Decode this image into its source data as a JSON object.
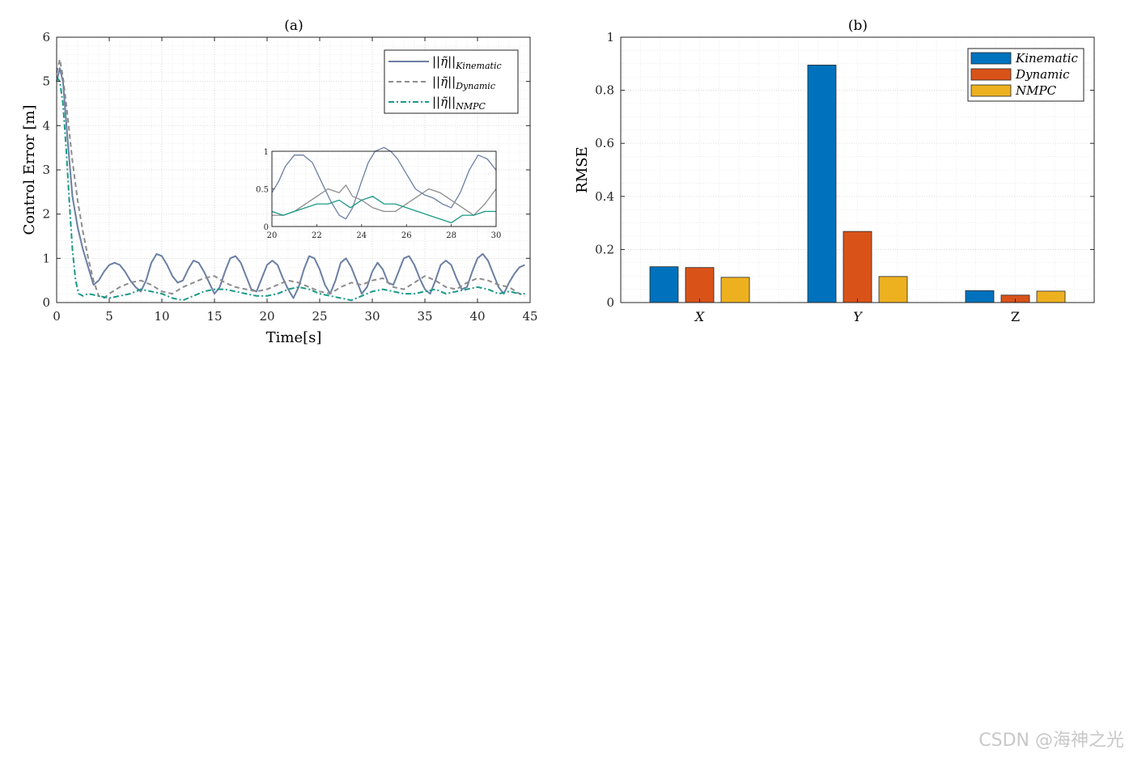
{
  "watermark": "CSDN @海神之光",
  "chart_data": [
    {
      "type": "line",
      "title": "(a)",
      "xlabel": "Time[s]",
      "ylabel": "Control Error [m]",
      "xlim": [
        0,
        45
      ],
      "ylim": [
        0,
        6
      ],
      "xticks": [
        0,
        5,
        10,
        15,
        20,
        25,
        30,
        35,
        40,
        45
      ],
      "yticks": [
        0,
        1,
        2,
        3,
        4,
        5,
        6
      ],
      "grid": true,
      "legend_position": "top-right",
      "series": [
        {
          "name": "||η̃||Kinematic",
          "name_base": "||η̃||",
          "name_sub": "Kinematic",
          "color": "#6b7fa3",
          "dash": "solid",
          "x": [
            0,
            0.3,
            0.6,
            1.0,
            1.5,
            2.0,
            2.5,
            3.0,
            3.5,
            4.0,
            4.5,
            5.0,
            5.5,
            6.0,
            6.5,
            7.0,
            7.5,
            8.0,
            8.5,
            9.0,
            9.5,
            10.0,
            10.5,
            11.0,
            11.5,
            12.0,
            12.5,
            13.0,
            13.5,
            14.0,
            14.5,
            15.0,
            15.5,
            16.0,
            16.5,
            17.0,
            17.5,
            18.0,
            18.5,
            19.0,
            19.5,
            20.0,
            20.5,
            21.0,
            21.5,
            22.0,
            22.5,
            23.0,
            23.5,
            24.0,
            24.5,
            25.0,
            25.5,
            26.0,
            26.5,
            27.0,
            27.5,
            28.0,
            28.5,
            29.0,
            29.5,
            30.0,
            30.5,
            31.0,
            31.5,
            32.0,
            32.5,
            33.0,
            33.5,
            34.0,
            34.5,
            35.0,
            35.5,
            36.0,
            36.5,
            37.0,
            37.5,
            38.0,
            38.5,
            39.0,
            39.5,
            40.0,
            40.5,
            41.0,
            41.5,
            42.0,
            42.5,
            43.0,
            43.5,
            44.0,
            44.5
          ],
          "y": [
            5.0,
            5.3,
            5.0,
            3.8,
            2.4,
            1.7,
            1.2,
            0.8,
            0.4,
            0.5,
            0.7,
            0.85,
            0.9,
            0.85,
            0.7,
            0.5,
            0.35,
            0.25,
            0.5,
            0.9,
            1.1,
            1.05,
            0.85,
            0.6,
            0.45,
            0.5,
            0.75,
            0.95,
            0.9,
            0.7,
            0.45,
            0.2,
            0.35,
            0.7,
            1.0,
            1.05,
            0.9,
            0.6,
            0.3,
            0.25,
            0.55,
            0.85,
            0.95,
            0.85,
            0.55,
            0.3,
            0.1,
            0.35,
            0.75,
            1.05,
            1.0,
            0.75,
            0.4,
            0.2,
            0.5,
            0.9,
            1.0,
            0.8,
            0.5,
            0.2,
            0.35,
            0.7,
            0.9,
            0.75,
            0.45,
            0.4,
            0.7,
            1.0,
            1.05,
            0.85,
            0.55,
            0.3,
            0.2,
            0.5,
            0.85,
            0.95,
            0.85,
            0.55,
            0.3,
            0.35,
            0.7,
            1.0,
            1.1,
            0.95,
            0.65,
            0.35,
            0.2,
            0.45,
            0.65,
            0.8,
            0.85
          ]
        },
        {
          "name": "||η̃||Dynamic",
          "name_base": "||η̃||",
          "name_sub": "Dynamic",
          "color": "#8c8c8c",
          "dash": "6,4",
          "x": [
            0,
            0.3,
            0.6,
            1.0,
            1.5,
            2.0,
            2.5,
            3.0,
            3.5,
            4.0,
            4.5,
            5.0,
            6.0,
            7.0,
            8.0,
            9.0,
            10.0,
            11.0,
            12.0,
            13.0,
            14.0,
            15.0,
            16.0,
            17.0,
            18.0,
            19.0,
            20.0,
            21.0,
            22.0,
            23.0,
            24.0,
            25.0,
            26.0,
            27.0,
            28.0,
            29.0,
            30.0,
            31.0,
            32.0,
            33.0,
            34.0,
            35.0,
            36.0,
            37.0,
            38.0,
            39.0,
            40.0,
            41.0,
            42.0,
            43.0,
            44.0,
            44.5
          ],
          "y": [
            5.2,
            5.5,
            5.1,
            4.3,
            3.2,
            2.3,
            1.6,
            1.0,
            0.5,
            0.15,
            0.1,
            0.2,
            0.35,
            0.45,
            0.5,
            0.4,
            0.25,
            0.2,
            0.35,
            0.45,
            0.55,
            0.6,
            0.45,
            0.35,
            0.3,
            0.25,
            0.3,
            0.4,
            0.5,
            0.45,
            0.35,
            0.25,
            0.2,
            0.35,
            0.45,
            0.4,
            0.5,
            0.55,
            0.35,
            0.3,
            0.45,
            0.6,
            0.5,
            0.35,
            0.3,
            0.45,
            0.55,
            0.5,
            0.4,
            0.35,
            0.2,
            0.15
          ]
        },
        {
          "name": "||η̃||NMPC",
          "name_base": "||η̃||",
          "name_sub": "NMPC",
          "color": "#1a9988",
          "dash": "7,3,2,3",
          "x": [
            0,
            0.3,
            0.6,
            0.9,
            1.2,
            1.5,
            1.8,
            2.1,
            2.5,
            3.0,
            4.0,
            5.0,
            6.0,
            7.0,
            8.0,
            9.0,
            10.0,
            11.0,
            12.0,
            13.0,
            14.0,
            15.0,
            16.0,
            17.0,
            18.0,
            19.0,
            20.0,
            21.0,
            22.0,
            23.0,
            24.0,
            25.0,
            26.0,
            27.0,
            28.0,
            29.0,
            30.0,
            31.0,
            32.0,
            33.0,
            34.0,
            35.0,
            36.0,
            37.0,
            38.0,
            39.0,
            40.0,
            41.0,
            42.0,
            43.0,
            44.0,
            44.5
          ],
          "y": [
            5.1,
            5.0,
            4.5,
            3.5,
            2.3,
            1.2,
            0.5,
            0.2,
            0.15,
            0.2,
            0.15,
            0.1,
            0.15,
            0.2,
            0.3,
            0.25,
            0.2,
            0.1,
            0.05,
            0.15,
            0.25,
            0.3,
            0.3,
            0.25,
            0.2,
            0.15,
            0.15,
            0.2,
            0.3,
            0.35,
            0.3,
            0.2,
            0.15,
            0.1,
            0.05,
            0.15,
            0.25,
            0.3,
            0.25,
            0.2,
            0.2,
            0.25,
            0.3,
            0.2,
            0.25,
            0.3,
            0.35,
            0.3,
            0.2,
            0.25,
            0.2,
            0.2
          ]
        }
      ],
      "inset": {
        "xlim": [
          20,
          30
        ],
        "ylim": [
          0,
          1
        ],
        "xticks": [
          20,
          22,
          24,
          26,
          28,
          30
        ],
        "yticks": [
          0,
          0.5,
          1
        ],
        "series": [
          {
            "name_ref": "Kinematic",
            "x": [
              20,
              20.3,
              20.6,
              21.0,
              21.4,
              21.8,
              22.2,
              22.6,
              23.0,
              23.3,
              23.6,
              24.0,
              24.3,
              24.6,
              25.0,
              25.3,
              25.6,
              26.0,
              26.4,
              26.8,
              27.2,
              27.6,
              28.0,
              28.4,
              28.8,
              29.2,
              29.6,
              30.0
            ],
            "y": [
              0.45,
              0.6,
              0.8,
              0.95,
              0.95,
              0.85,
              0.6,
              0.35,
              0.15,
              0.1,
              0.25,
              0.6,
              0.85,
              1.0,
              1.05,
              1.0,
              0.9,
              0.7,
              0.5,
              0.42,
              0.38,
              0.3,
              0.25,
              0.45,
              0.75,
              0.95,
              0.9,
              0.75
            ]
          },
          {
            "name_ref": "Dynamic",
            "x": [
              20,
              20.5,
              21.0,
              21.5,
              22.0,
              22.5,
              23.0,
              23.3,
              23.6,
              24.0,
              24.5,
              25.0,
              25.5,
              26.0,
              26.5,
              27.0,
              27.5,
              28.0,
              28.5,
              29.0,
              29.5,
              30.0
            ],
            "y": [
              0.15,
              0.15,
              0.2,
              0.3,
              0.4,
              0.5,
              0.45,
              0.55,
              0.4,
              0.35,
              0.25,
              0.2,
              0.2,
              0.3,
              0.4,
              0.5,
              0.45,
              0.35,
              0.25,
              0.15,
              0.3,
              0.5
            ]
          },
          {
            "name_ref": "NMPC",
            "x": [
              20,
              20.5,
              21.0,
              21.5,
              22.0,
              22.5,
              23.0,
              23.5,
              24.0,
              24.5,
              25.0,
              25.5,
              26.0,
              26.5,
              27.0,
              27.5,
              28.0,
              28.5,
              29.0,
              29.5,
              30.0
            ],
            "y": [
              0.2,
              0.15,
              0.2,
              0.25,
              0.3,
              0.3,
              0.35,
              0.25,
              0.35,
              0.4,
              0.3,
              0.3,
              0.25,
              0.2,
              0.15,
              0.1,
              0.05,
              0.15,
              0.15,
              0.2,
              0.2
            ]
          }
        ]
      }
    },
    {
      "type": "bar",
      "title": "(b)",
      "xlabel": "",
      "ylabel": "RMSE",
      "categories": [
        "X",
        "Y",
        "Z"
      ],
      "category_italic": [
        true,
        true,
        false
      ],
      "ylim": [
        0,
        1
      ],
      "yticks": [
        0,
        0.2,
        0.4,
        0.6,
        0.8,
        1
      ],
      "grid": true,
      "legend_position": "top-right",
      "series": [
        {
          "name": "Kinematic",
          "color": "#0072bd",
          "values": [
            0.135,
            0.895,
            0.045
          ]
        },
        {
          "name": "Dynamic",
          "color": "#d95319",
          "values": [
            0.132,
            0.268,
            0.028
          ]
        },
        {
          "name": "NMPC",
          "color": "#edb120",
          "values": [
            0.095,
            0.098,
            0.043
          ]
        }
      ]
    }
  ]
}
